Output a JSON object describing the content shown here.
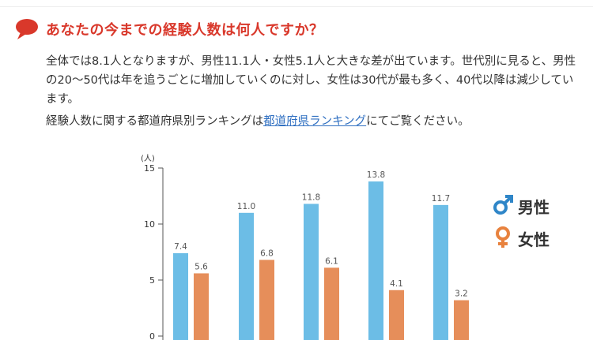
{
  "heading": {
    "icon": "speech-bubble-icon",
    "title": "あなたの今までの経験人数は何人ですか？"
  },
  "paragraph1": "全体では8.1人となりますが、男性11.1人・女性5.1人と大きな差が出ています。世代別に見ると、男性の20〜50代は年を追うごとに増加していくのに対し、女性は30代が最も多く、40代以降は減少しています。",
  "paragraph2": {
    "before": "経験人数に関する都道府県別ランキングは",
    "link": "都道府県ランキング",
    "after": "にてご覧ください。"
  },
  "colors": {
    "male": "#6cbde6",
    "female": "#e68e5a",
    "male_symbol": "#2f86c8",
    "female_symbol": "#e8823e",
    "heading": "#d9382b"
  },
  "chart_data": {
    "type": "bar",
    "ylabel": "(人)",
    "ylim": [
      0,
      15
    ],
    "yticks": [
      0,
      5,
      10,
      15
    ],
    "grid": false,
    "legend_position": "right",
    "categories": [
      "",
      "",
      "",
      "",
      ""
    ],
    "series": [
      {
        "name": "男性",
        "symbol": "♂",
        "values": [
          7.4,
          11.0,
          11.8,
          13.8,
          11.7
        ],
        "labels": [
          "7.4",
          "11.0",
          "11.8",
          "13.8",
          "11.7"
        ]
      },
      {
        "name": "女性",
        "symbol": "♀",
        "values": [
          5.6,
          6.8,
          6.1,
          4.1,
          3.2
        ],
        "labels": [
          "5.6",
          "6.8",
          "6.1",
          "4.1",
          "3.2"
        ]
      }
    ]
  }
}
